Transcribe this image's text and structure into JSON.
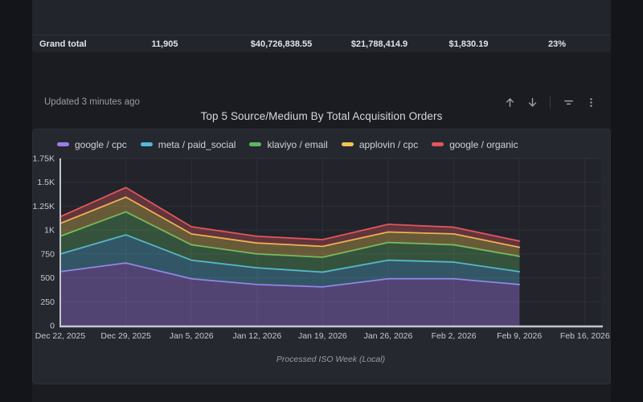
{
  "summary_table": {
    "row_label": "Grand total",
    "values": [
      "11,905",
      "$40,726,838.55",
      "$21,788,414.9",
      "$1,830.19",
      "23%"
    ]
  },
  "panel_header": {
    "updated_text": "Updated 3 minutes ago",
    "icons": [
      "arrow-up",
      "arrow-down",
      "filter",
      "kebab-menu"
    ]
  },
  "colors": {
    "page_bg": "#14151a",
    "content_bg": "#1b1c22",
    "table_panel_bg": "#23252c",
    "chart_panel_bg": "#262830",
    "axis_line": "#c3c6cc",
    "grid_line": "rgba(210,220,240,0.07)",
    "tick_text": "#c7c9ce",
    "dim_text": "#9a9ca2"
  },
  "chart_data": {
    "type": "area",
    "stacked": true,
    "title": "Top 5 Source/Medium By Total Acquisition Orders",
    "xlabel": "Processed ISO Week (Local)",
    "ylabel": "",
    "ylim": [
      0,
      1750
    ],
    "y_tick_step": 250,
    "y_ticks": [
      "0",
      "250",
      "500",
      "750",
      "1K",
      "1.25K",
      "1.5K",
      "1.75K"
    ],
    "x_ticks": [
      "Dec 22, 2025",
      "Dec 29, 2025",
      "Jan 5, 2026",
      "Jan 12, 2026",
      "Jan 19, 2026",
      "Jan 26, 2026",
      "Feb 2, 2026",
      "Feb 9, 2026",
      "Feb 16, 2026"
    ],
    "data_ends_at_tick": 7,
    "grid": true,
    "legend_position": "top",
    "series": [
      {
        "name": "google / cpc",
        "line": "#9d7ce8",
        "fill_alpha": 0.38,
        "values": [
          565,
          655,
          490,
          430,
          405,
          490,
          490,
          430
        ]
      },
      {
        "name": "meta / paid_social",
        "line": "#53b8d9",
        "fill_alpha": 0.34,
        "values": [
          185,
          295,
          195,
          175,
          155,
          195,
          175,
          135
        ]
      },
      {
        "name": "klaviyo / email",
        "line": "#5cb85f",
        "fill_alpha": 0.32,
        "values": [
          185,
          240,
          160,
          145,
          155,
          185,
          180,
          160
        ]
      },
      {
        "name": "applovin / cpc",
        "line": "#eec351",
        "fill_alpha": 0.34,
        "values": [
          135,
          155,
          115,
          115,
          115,
          110,
          115,
          95
        ]
      },
      {
        "name": "google / organic",
        "line": "#e0565b",
        "fill_alpha": 0.34,
        "values": [
          70,
          100,
          75,
          70,
          70,
          80,
          70,
          65
        ]
      }
    ]
  }
}
